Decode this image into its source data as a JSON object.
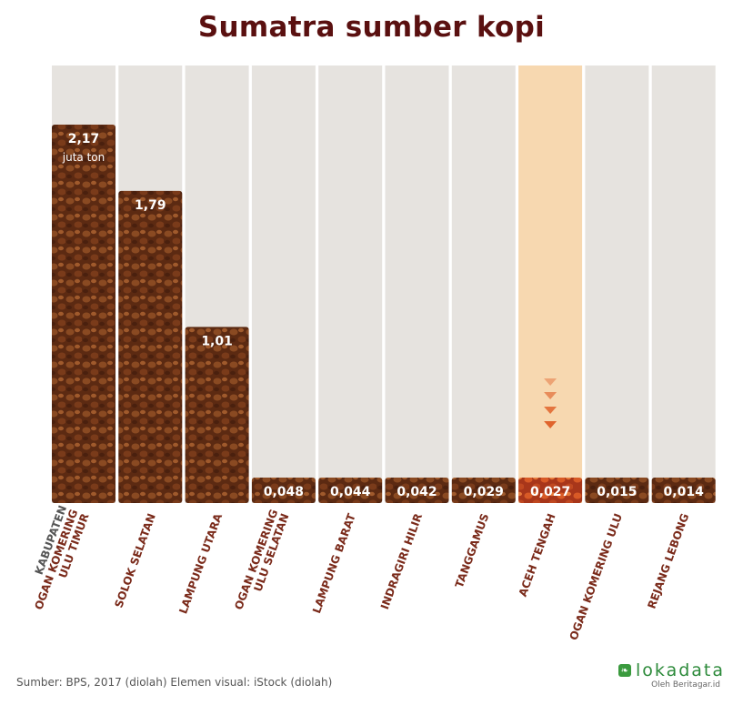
{
  "title": "Sumatra sumber kopi",
  "chart_data": {
    "type": "bar",
    "title": "Sumatra sumber kopi",
    "categories": [
      "KABUPATEN OGAN KOMERING ULU TIMUR",
      "SOLOK SELATAN",
      "LAMPUNG UTARA",
      "OGAN KOMERING ULU SELATAN",
      "LAMPUNG BARAT",
      "INDRAGIRI HILIR",
      "TANGGAMUS",
      "ACEH TENGAH",
      "OGAN KOMERING ULU",
      "REJANG LEBONG"
    ],
    "category_label_lines": [
      [
        "KABUPATEN",
        "OGAN KOMERING",
        "ULU TIMUR"
      ],
      [
        "SOLOK SELATAN"
      ],
      [
        "LAMPUNG UTARA"
      ],
      [
        "OGAN KOMERING",
        "ULU SELATAN"
      ],
      [
        "LAMPUNG BARAT"
      ],
      [
        "INDRAGIRI HILIR"
      ],
      [
        "TANGGAMUS"
      ],
      [
        "ACEH TENGAH"
      ],
      [
        "OGAN KOMERING ULU"
      ],
      [
        "REJANG LEBONG"
      ]
    ],
    "values": [
      2.17,
      1.79,
      1.01,
      0.048,
      0.044,
      0.042,
      0.029,
      0.027,
      0.015,
      0.014
    ],
    "value_labels": [
      "2,17",
      "1,79",
      "1,01",
      "0,048",
      "0,044",
      "0,042",
      "0,029",
      "0,027",
      "0,015",
      "0,014"
    ],
    "unit_label": "juta ton",
    "highlight_category": "ACEH TENGAH",
    "colors": {
      "bar": "#6b3418",
      "bar_highlight": "#c2461c",
      "column_bg": "#e6e3df",
      "column_bg_highlight": "#f7d8b0",
      "label_dark": "#555555",
      "label_accent": "#7a2a1a",
      "arrow": "#e0642c"
    }
  },
  "footer": {
    "source": "Sumber: BPS, 2017 (diolah) Elemen visual: iStock (diolah)",
    "brand_name": "lokadata",
    "brand_sub": "Oleh Beritagar.id",
    "brand_icon": "leaf-logo-icon"
  }
}
